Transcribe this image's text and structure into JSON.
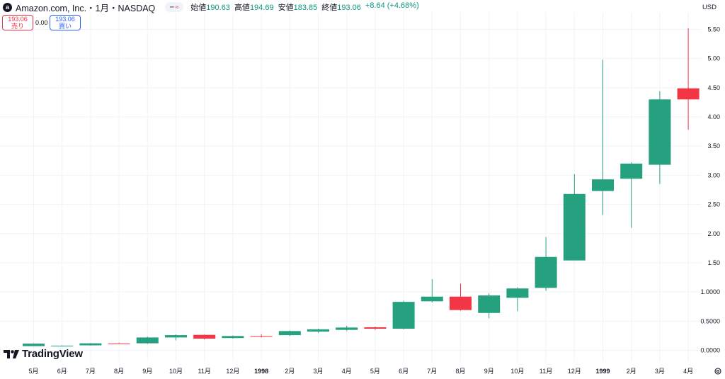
{
  "header": {
    "logo_letter": "a",
    "symbol": "Amazon.com, Inc.・1月・NASDAQ",
    "open_label": "始値",
    "open": "190.63",
    "high_label": "高値",
    "high": "194.69",
    "low_label": "安値",
    "low": "183.85",
    "close_label": "終値",
    "close": "193.06",
    "change": "+8.64 (+4.68%)"
  },
  "trade": {
    "sell_price": "193.06",
    "sell_label": "売り",
    "spread": "0.00",
    "buy_price": "193.06",
    "buy_label": "買い"
  },
  "currency": "USD",
  "brand": "TradingView",
  "colors": {
    "up": "#26a17f",
    "down": "#f23645",
    "grid": "#f0f3fa",
    "text": "#131722"
  },
  "chart_data": {
    "type": "candlestick",
    "ylim": [
      0,
      5.6
    ],
    "y_ticks": [
      "0.0000",
      "0.5000",
      "1.0000",
      "1.50",
      "2.00",
      "2.50",
      "3.00",
      "3.50",
      "4.00",
      "4.50",
      "5.00",
      "5.50"
    ],
    "x_ticks": [
      "5月",
      "6月",
      "7月",
      "8月",
      "9月",
      "10月",
      "11月",
      "12月",
      "1998",
      "2月",
      "3月",
      "4月",
      "5月",
      "6月",
      "7月",
      "8月",
      "9月",
      "10月",
      "11月",
      "12月",
      "1999",
      "2月",
      "3月",
      "4月"
    ],
    "bold_ticks": [
      "1998",
      "1999"
    ],
    "candles": [
      {
        "x": "5月",
        "o": 0.072,
        "h": 0.12,
        "l": 0.07,
        "c": 0.115
      },
      {
        "x": "6月",
        "o": 0.075,
        "h": 0.085,
        "l": 0.065,
        "c": 0.08
      },
      {
        "x": "7月",
        "o": 0.085,
        "h": 0.125,
        "l": 0.08,
        "c": 0.12
      },
      {
        "x": "8月",
        "o": 0.118,
        "h": 0.13,
        "l": 0.11,
        "c": 0.115
      },
      {
        "x": "9月",
        "o": 0.12,
        "h": 0.235,
        "l": 0.11,
        "c": 0.22
      },
      {
        "x": "10月",
        "o": 0.22,
        "h": 0.275,
        "l": 0.17,
        "c": 0.26
      },
      {
        "x": "11月",
        "o": 0.265,
        "h": 0.27,
        "l": 0.185,
        "c": 0.2
      },
      {
        "x": "12月",
        "o": 0.21,
        "h": 0.255,
        "l": 0.2,
        "c": 0.245
      },
      {
        "x": "1998",
        "o": 0.245,
        "h": 0.275,
        "l": 0.22,
        "c": 0.24
      },
      {
        "x": "2月",
        "o": 0.26,
        "h": 0.34,
        "l": 0.245,
        "c": 0.33
      },
      {
        "x": "3月",
        "o": 0.32,
        "h": 0.37,
        "l": 0.3,
        "c": 0.36
      },
      {
        "x": "4月",
        "o": 0.35,
        "h": 0.42,
        "l": 0.33,
        "c": 0.39
      },
      {
        "x": "5月",
        "o": 0.395,
        "h": 0.405,
        "l": 0.35,
        "c": 0.37
      },
      {
        "x": "6月",
        "o": 0.37,
        "h": 0.85,
        "l": 0.36,
        "c": 0.83
      },
      {
        "x": "7月",
        "o": 0.84,
        "h": 1.22,
        "l": 0.82,
        "c": 0.92
      },
      {
        "x": "8月",
        "o": 0.92,
        "h": 1.14,
        "l": 0.68,
        "c": 0.69
      },
      {
        "x": "9月",
        "o": 0.64,
        "h": 0.98,
        "l": 0.55,
        "c": 0.94
      },
      {
        "x": "10月",
        "o": 0.9,
        "h": 1.08,
        "l": 0.67,
        "c": 1.06
      },
      {
        "x": "11月",
        "o": 1.07,
        "h": 1.94,
        "l": 1.02,
        "c": 1.6
      },
      {
        "x": "12月",
        "o": 1.54,
        "h": 3.02,
        "l": 1.54,
        "c": 2.68
      },
      {
        "x": "1999",
        "o": 2.73,
        "h": 4.98,
        "l": 2.32,
        "c": 2.93
      },
      {
        "x": "2月",
        "o": 2.94,
        "h": 3.22,
        "l": 2.1,
        "c": 3.2
      },
      {
        "x": "3月",
        "o": 3.18,
        "h": 4.44,
        "l": 2.85,
        "c": 4.3
      },
      {
        "x": "4月",
        "o": 4.49,
        "h": 5.52,
        "l": 3.78,
        "c": 4.3
      }
    ]
  }
}
